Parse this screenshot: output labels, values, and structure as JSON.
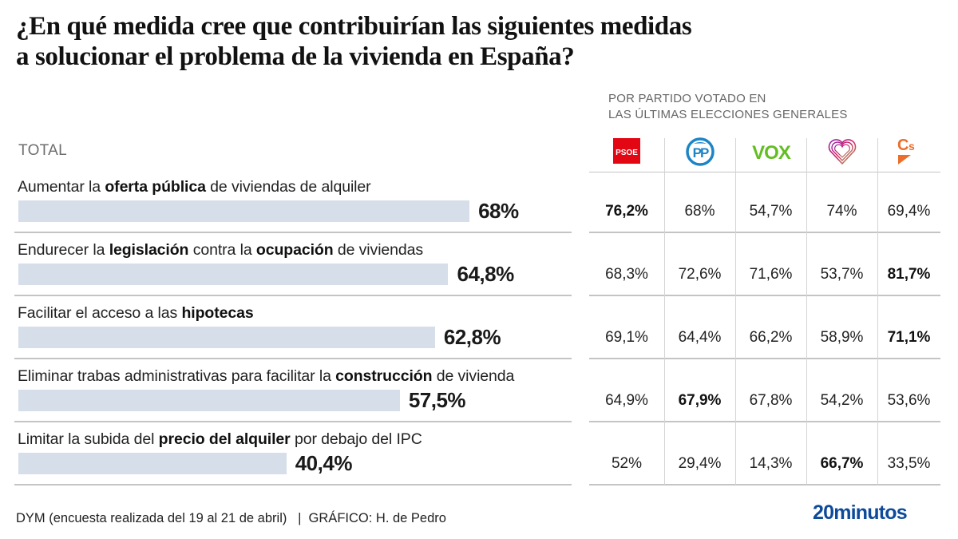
{
  "title": {
    "line1": "¿En qué medida cree que contribuirían las siguientes medidas",
    "line2": "a solucionar el problema de la vivienda en España?"
  },
  "total_label": "TOTAL",
  "party_caption": {
    "line1": "POR PARTIDO VOTADO EN",
    "line2": "LAS ÚLTIMAS ELECCIONES GENERALES"
  },
  "parties": [
    {
      "name": "PSOE",
      "icon": "psoe-logo-icon",
      "color": "#e30613"
    },
    {
      "name": "PP",
      "icon": "pp-logo-icon",
      "color": "#1d84c6"
    },
    {
      "name": "VOX",
      "icon": "vox-logo-icon",
      "color": "#63be21"
    },
    {
      "name": "Sumar",
      "icon": "sumar-heart-logo-icon",
      "color": "#c2185b"
    },
    {
      "name": "Cs",
      "icon": "ciudadanos-logo-icon",
      "color": "#eb6e2c"
    }
  ],
  "bar_color": "#d6dee9",
  "chart_data": {
    "type": "bar",
    "orientation": "horizontal",
    "title": "¿En qué medida cree que contribuirían las siguientes medidas a solucionar el problema de la vivienda en España?",
    "xlabel": "",
    "ylabel": "",
    "xlim": [
      0,
      100
    ],
    "grid": false,
    "categories": [
      "Aumentar la oferta pública de viviendas de alquiler",
      "Endurecer la legislación contra la ocupación de viviendas",
      "Facilitar el acceso a las hipotecas",
      "Eliminar trabas administrativas para facilitar la construcción de vivienda",
      "Limitar la subida del precio del alquiler por debajo del IPC"
    ],
    "values": [
      68,
      64.8,
      62.8,
      57.5,
      40.4
    ],
    "value_labels": [
      "68%",
      "64,8%",
      "62,8%",
      "57,5%",
      "40,4%"
    ],
    "table": {
      "columns": [
        "PSOE",
        "PP",
        "VOX",
        "Sumar",
        "Cs"
      ],
      "series": [
        {
          "name": "PSOE",
          "values": [
            76.2,
            68.3,
            69.1,
            64.9,
            52
          ]
        },
        {
          "name": "PP",
          "values": [
            68,
            72.6,
            64.4,
            67.9,
            29.4
          ]
        },
        {
          "name": "VOX",
          "values": [
            54.7,
            71.6,
            66.2,
            67.8,
            14.3
          ]
        },
        {
          "name": "Sumar",
          "values": [
            74,
            53.7,
            58.9,
            54.2,
            66.7
          ]
        },
        {
          "name": "Cs",
          "values": [
            69.4,
            81.7,
            71.1,
            53.6,
            33.5
          ]
        }
      ]
    }
  },
  "rows": [
    {
      "label_parts": [
        {
          "t": "Aumentar la ",
          "b": false
        },
        {
          "t": "oferta pública",
          "b": true
        },
        {
          "t": " de viviendas de alquiler",
          "b": false
        }
      ],
      "total": "68%",
      "cells": [
        {
          "v": "76,2%",
          "hi": true
        },
        {
          "v": "68%",
          "hi": false
        },
        {
          "v": "54,7%",
          "hi": false
        },
        {
          "v": "74%",
          "hi": false
        },
        {
          "v": "69,4%",
          "hi": false
        }
      ]
    },
    {
      "label_parts": [
        {
          "t": "Endurecer la ",
          "b": false
        },
        {
          "t": "legislación",
          "b": true
        },
        {
          "t": " contra la ",
          "b": false
        },
        {
          "t": "ocupación",
          "b": true
        },
        {
          "t": " de viviendas",
          "b": false
        }
      ],
      "total": "64,8%",
      "cells": [
        {
          "v": "68,3%",
          "hi": false
        },
        {
          "v": "72,6%",
          "hi": false
        },
        {
          "v": "71,6%",
          "hi": false
        },
        {
          "v": "53,7%",
          "hi": false
        },
        {
          "v": "81,7%",
          "hi": true
        }
      ]
    },
    {
      "label_parts": [
        {
          "t": "Facilitar el acceso a las ",
          "b": false
        },
        {
          "t": "hipotecas",
          "b": true
        }
      ],
      "total": "62,8%",
      "cells": [
        {
          "v": "69,1%",
          "hi": false
        },
        {
          "v": "64,4%",
          "hi": false
        },
        {
          "v": "66,2%",
          "hi": false
        },
        {
          "v": "58,9%",
          "hi": false
        },
        {
          "v": "71,1%",
          "hi": true
        }
      ]
    },
    {
      "label_parts": [
        {
          "t": "Eliminar trabas administrativas para facilitar la ",
          "b": false
        },
        {
          "t": "construcción",
          "b": true
        },
        {
          "t": " de vivienda",
          "b": false
        }
      ],
      "total": "57,5%",
      "cells": [
        {
          "v": "64,9%",
          "hi": false
        },
        {
          "v": "67,9%",
          "hi": true
        },
        {
          "v": "67,8%",
          "hi": false
        },
        {
          "v": "54,2%",
          "hi": false
        },
        {
          "v": "53,6%",
          "hi": false
        }
      ]
    },
    {
      "label_parts": [
        {
          "t": "Limitar la subida del ",
          "b": false
        },
        {
          "t": "precio del alquiler",
          "b": true
        },
        {
          "t": " por debajo del IPC",
          "b": false
        }
      ],
      "total": "40,4%",
      "cells": [
        {
          "v": "52%",
          "hi": false
        },
        {
          "v": "29,4%",
          "hi": false
        },
        {
          "v": "14,3%",
          "hi": false
        },
        {
          "v": "66,7%",
          "hi": true
        },
        {
          "v": "33,5%",
          "hi": false
        }
      ]
    }
  ],
  "footer": {
    "source": "DYM (encuesta realizada del 19 al 21 de abril)   |  GRÁFICO: H. de Pedro",
    "brand": "20minutos"
  }
}
